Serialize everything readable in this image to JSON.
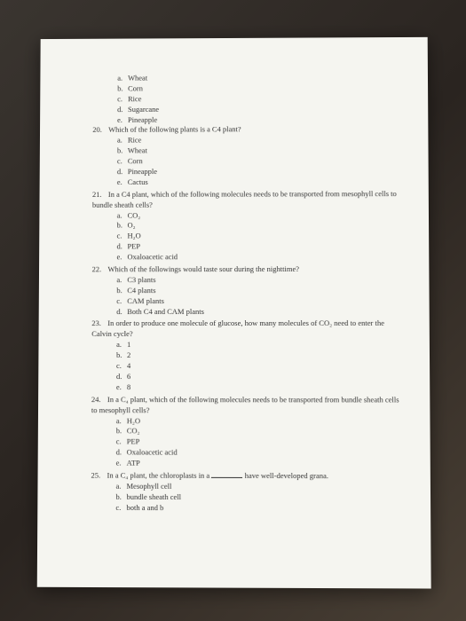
{
  "page": {
    "background_colors": [
      "#3a3530",
      "#2a2420",
      "#4a4035"
    ],
    "paper_color": "#f5f5f0",
    "text_color": "#333333",
    "font_size": 8.5,
    "font_family": "Times New Roman"
  },
  "continuation_options": {
    "a": "Wheat",
    "b": "Corn",
    "c": "Rice",
    "d": "Sugarcane",
    "e": "Pineapple"
  },
  "questions": [
    {
      "number": "20.",
      "text": "Which of the following plants is a C4 plant?",
      "options": {
        "a": "Rice",
        "b": "Wheat",
        "c": "Corn",
        "d": "Pineapple",
        "e": "Cactus"
      }
    },
    {
      "number": "21.",
      "text": "In a C4 plant, which of the following molecules needs to be transported from mesophyll cells to bundle sheath cells?",
      "options": {
        "a": "CO₂",
        "b": "O₂",
        "c": "H₂O",
        "d": "PEP",
        "e": "Oxaloacetic acid"
      }
    },
    {
      "number": "22.",
      "text": "Which of the followings would taste sour during the nighttime?",
      "options": {
        "a": "C3 plants",
        "b": "C4 plants",
        "c": "CAM plants",
        "d": "Both C4 and CAM plants"
      }
    },
    {
      "number": "23.",
      "text": "In order to produce one molecule of glucose, how many molecules of CO₂ need to enter the Calvin cycle?",
      "options": {
        "a": "1",
        "b": "2",
        "c": "4",
        "d": "6",
        "e": "8"
      }
    },
    {
      "number": "24.",
      "text": "In a C₄ plant, which of the following molecules needs to be transported from bundle sheath cells to mesophyll cells?",
      "options": {
        "a": "H₂O",
        "b": "CO₂",
        "c": "PEP",
        "d": "Oxaloacetic acid",
        "e": "ATP"
      }
    },
    {
      "number": "25.",
      "text_before": "In a C₄ plant, the chloroplasts in a ",
      "text_after": " have well-developed grana.",
      "has_blank": true,
      "options": {
        "a": "Mesophyll cell",
        "b": "bundle sheath cell",
        "c": "both a and b"
      }
    }
  ]
}
